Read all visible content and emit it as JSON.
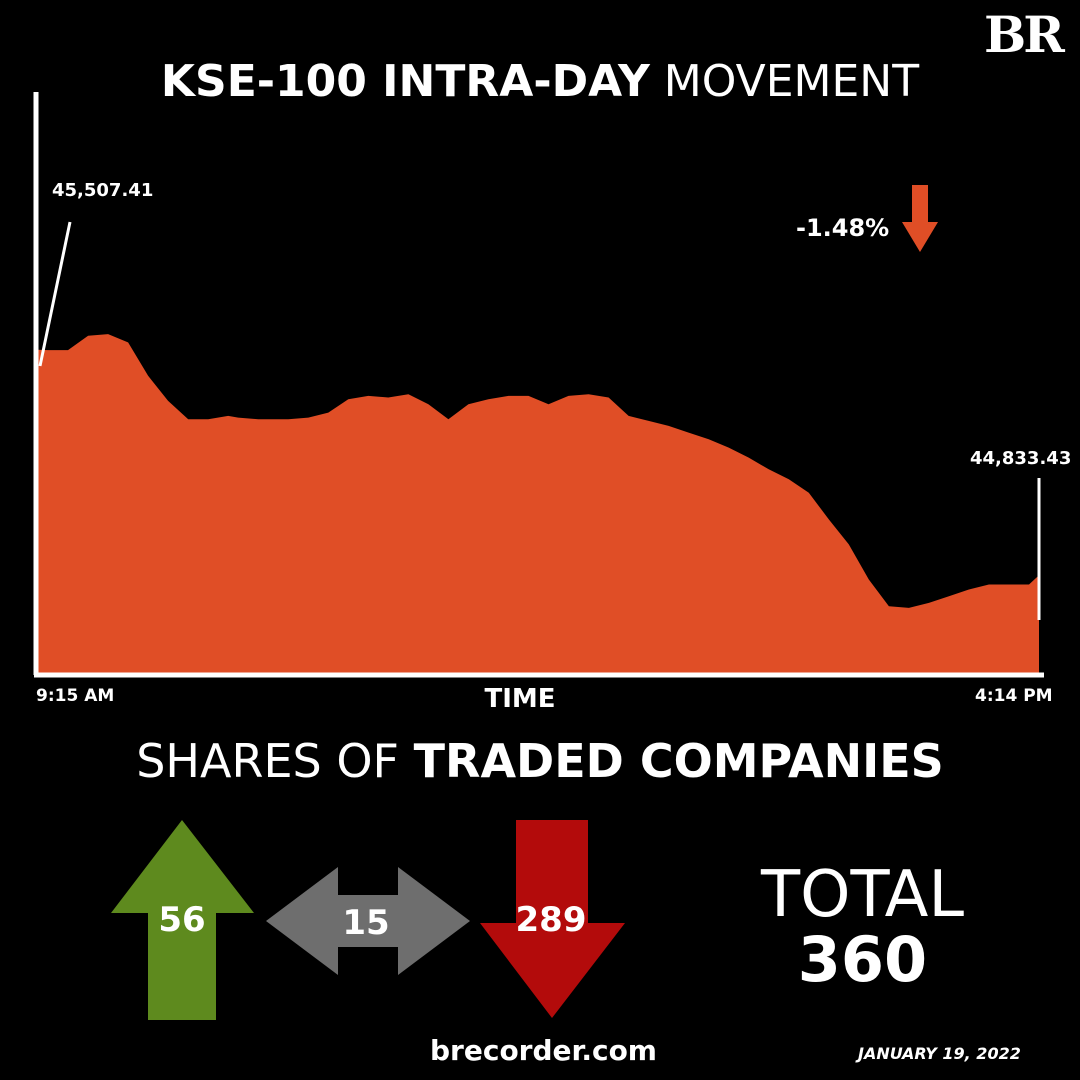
{
  "brand": {
    "logo_text": "BR"
  },
  "title": {
    "bold": "KSE-100 INTRA-DAY",
    "light": " MOVEMENT"
  },
  "colors": {
    "area": "#E04E26",
    "up": "#5E8A1E",
    "neutral": "#6E6E6E",
    "down": "#B30B0B",
    "background": "#000000",
    "axis": "#FFFFFF"
  },
  "chart_data": {
    "type": "area",
    "xlabel": "TIME",
    "x_start_label": "9:15 AM",
    "x_end_label": "4:14 PM",
    "open_value_label": "45,507.41",
    "close_value_label": "44,833.43",
    "change_label": "-1.48%",
    "change_direction": "down",
    "ylim": [
      44540,
      46280
    ],
    "t": [
      0,
      1,
      3,
      5,
      7,
      9,
      11,
      13,
      15,
      17,
      19,
      20,
      22,
      25,
      27,
      29,
      31,
      33,
      35,
      37,
      39,
      41,
      43,
      45,
      47,
      49,
      51,
      53,
      55,
      57,
      59,
      61,
      63,
      65,
      67,
      69,
      71,
      73,
      75,
      77,
      79,
      81,
      83,
      85,
      87,
      89,
      91,
      93,
      95,
      97,
      99,
      100
    ],
    "values": [
      45508,
      45507,
      45507,
      45550,
      45555,
      45530,
      45430,
      45355,
      45300,
      45300,
      45310,
      45305,
      45300,
      45300,
      45305,
      45320,
      45360,
      45370,
      45365,
      45375,
      45345,
      45300,
      45345,
      45360,
      45370,
      45370,
      45345,
      45370,
      45375,
      45365,
      45310,
      45295,
      45280,
      45260,
      45240,
      45215,
      45185,
      45150,
      45120,
      45080,
      45000,
      44925,
      44820,
      44740,
      44735,
      44750,
      44770,
      44790,
      44805,
      44805,
      44805,
      44833
    ]
  },
  "shares": {
    "title_light": "SHARES OF ",
    "title_bold": "TRADED COMPANIES",
    "up": "56",
    "unchanged": "15",
    "down": "289",
    "total_label": "TOTAL",
    "total": "360"
  },
  "footer": {
    "website": "brecorder.com",
    "date": "JANUARY 19, 2022"
  }
}
